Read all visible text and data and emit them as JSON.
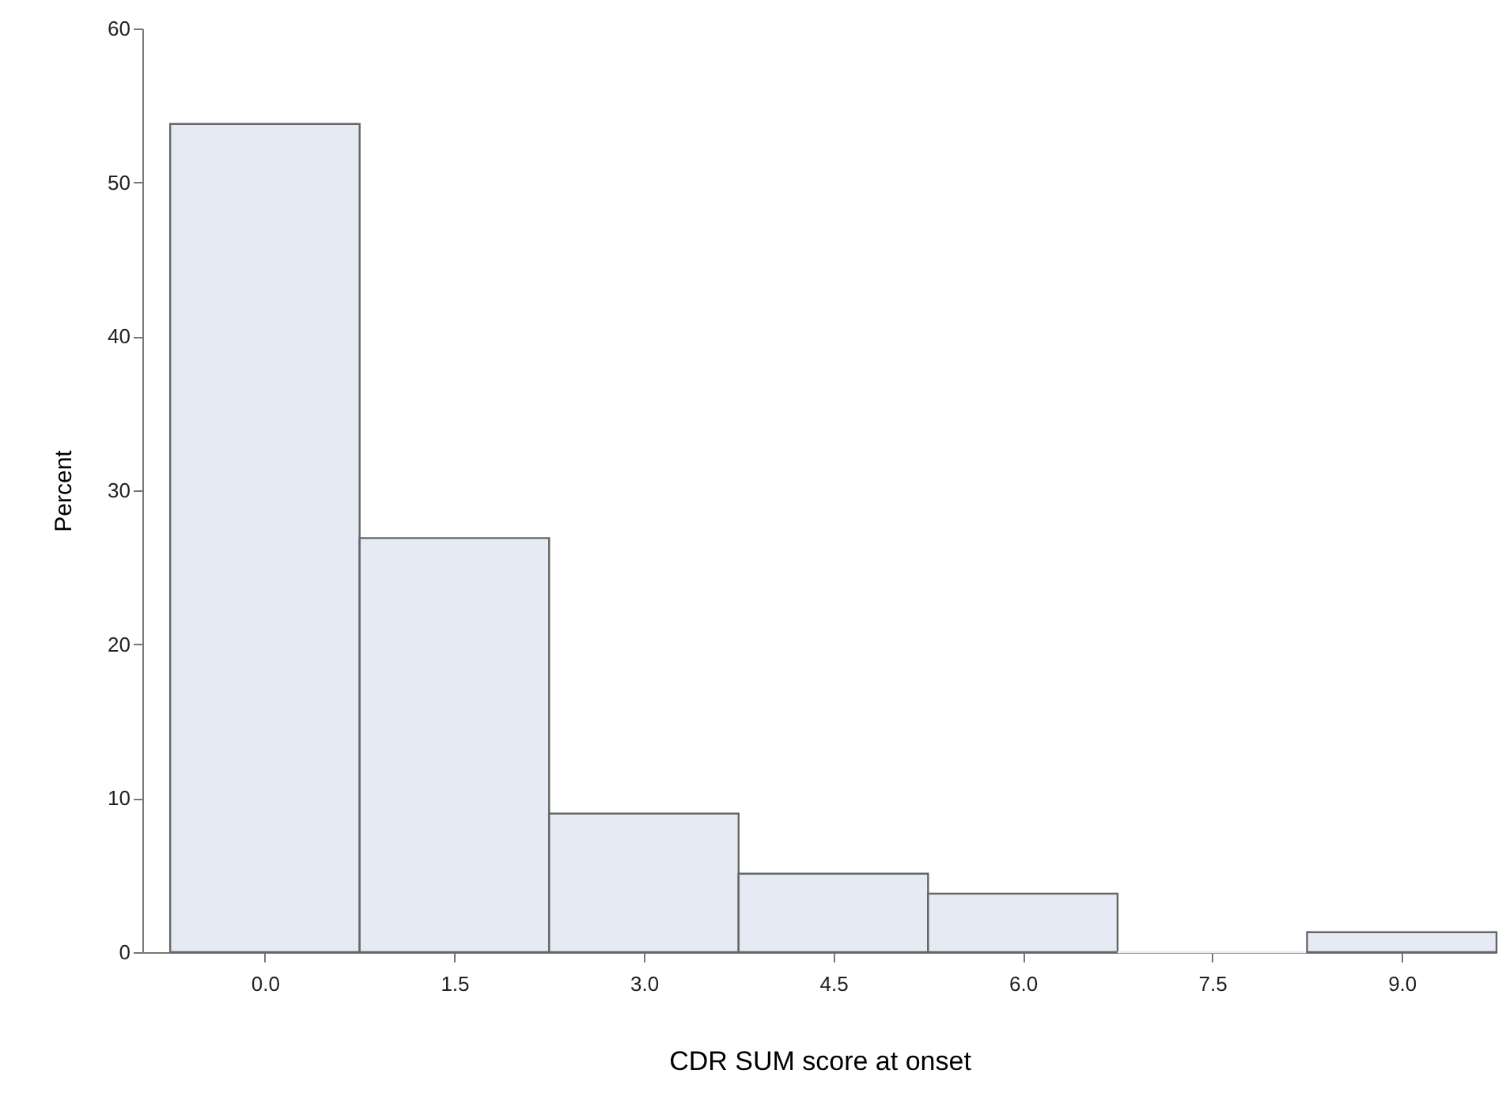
{
  "chart_data": {
    "type": "histogram",
    "xlabel": "CDR SUM score at onset",
    "ylabel": "Percent",
    "bins": [
      -0.75,
      0.75,
      2.25,
      3.75,
      5.25,
      6.75,
      8.25,
      9.75
    ],
    "values": [
      53.8,
      26.9,
      9.0,
      5.1,
      3.8,
      0,
      1.3
    ],
    "color": "#e6eaf4",
    "xlim": [
      -0.97,
      9.75
    ],
    "xticks": [
      {
        "value": 0,
        "label": "0.0"
      },
      {
        "value": 1.5,
        "label": "1.5"
      },
      {
        "value": 3,
        "label": "3.0"
      },
      {
        "value": 4.5,
        "label": "4.5"
      },
      {
        "value": 6,
        "label": "6.0"
      },
      {
        "value": 7.5,
        "label": "7.5"
      },
      {
        "value": 9,
        "label": "9.0"
      }
    ],
    "ylim": [
      0,
      60
    ],
    "yticks": [
      0,
      10,
      20,
      30,
      40,
      50,
      60
    ],
    "grid": false
  }
}
